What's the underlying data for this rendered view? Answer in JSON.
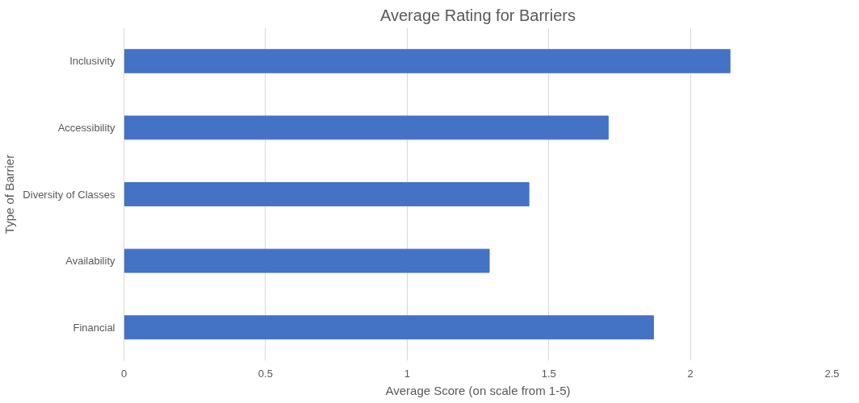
{
  "chart_data": {
    "type": "bar",
    "orientation": "horizontal",
    "title": "Average Rating for Barriers",
    "xlabel": "Average Score (on scale from 1-5)",
    "ylabel": "Type of Barrier",
    "categories": [
      "Inclusivity",
      "Accessibility",
      "Diversity of Classes",
      "Availability",
      "Financial"
    ],
    "values": [
      2.14,
      1.71,
      1.43,
      1.29,
      1.87
    ],
    "color": "#4472c4",
    "xlim": [
      0,
      2.5
    ],
    "xticks": [
      0,
      0.5,
      1,
      1.5,
      2,
      2.5
    ],
    "grid": "x"
  }
}
